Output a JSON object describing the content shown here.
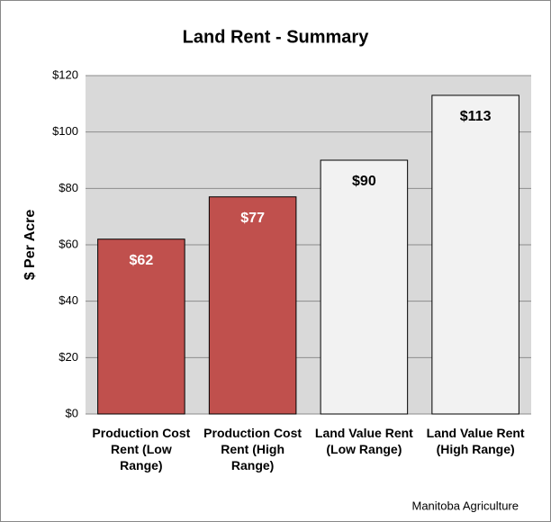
{
  "chart_data": {
    "type": "bar",
    "title": "Land Rent - Summary",
    "y_label": "$ Per Acre",
    "source": "Manitoba Agriculture",
    "categories": [
      "Production Cost Rent (Low Range)",
      "Production Cost Rent (High Range)",
      "Land Value Rent (Low Range)",
      "Land Value Rent (High Range)"
    ],
    "values": [
      62,
      77,
      90,
      113
    ],
    "value_labels": [
      "$62",
      "$77",
      "$90",
      "$113"
    ],
    "colors": [
      "#c0504d",
      "#c0504d",
      "#f2f2f2",
      "#f2f2f2"
    ],
    "label_colors": [
      "#ffffff",
      "#ffffff",
      "#000000",
      "#000000"
    ],
    "ylim": [
      0,
      120
    ],
    "yticks": [
      {
        "value": 0,
        "label": "$0"
      },
      {
        "value": 20,
        "label": "$20"
      },
      {
        "value": 40,
        "label": "$40"
      },
      {
        "value": 60,
        "label": "$60"
      },
      {
        "value": 80,
        "label": "$80"
      },
      {
        "value": 100,
        "label": "$100"
      },
      {
        "value": 120,
        "label": "$120"
      }
    ],
    "grid": true
  }
}
